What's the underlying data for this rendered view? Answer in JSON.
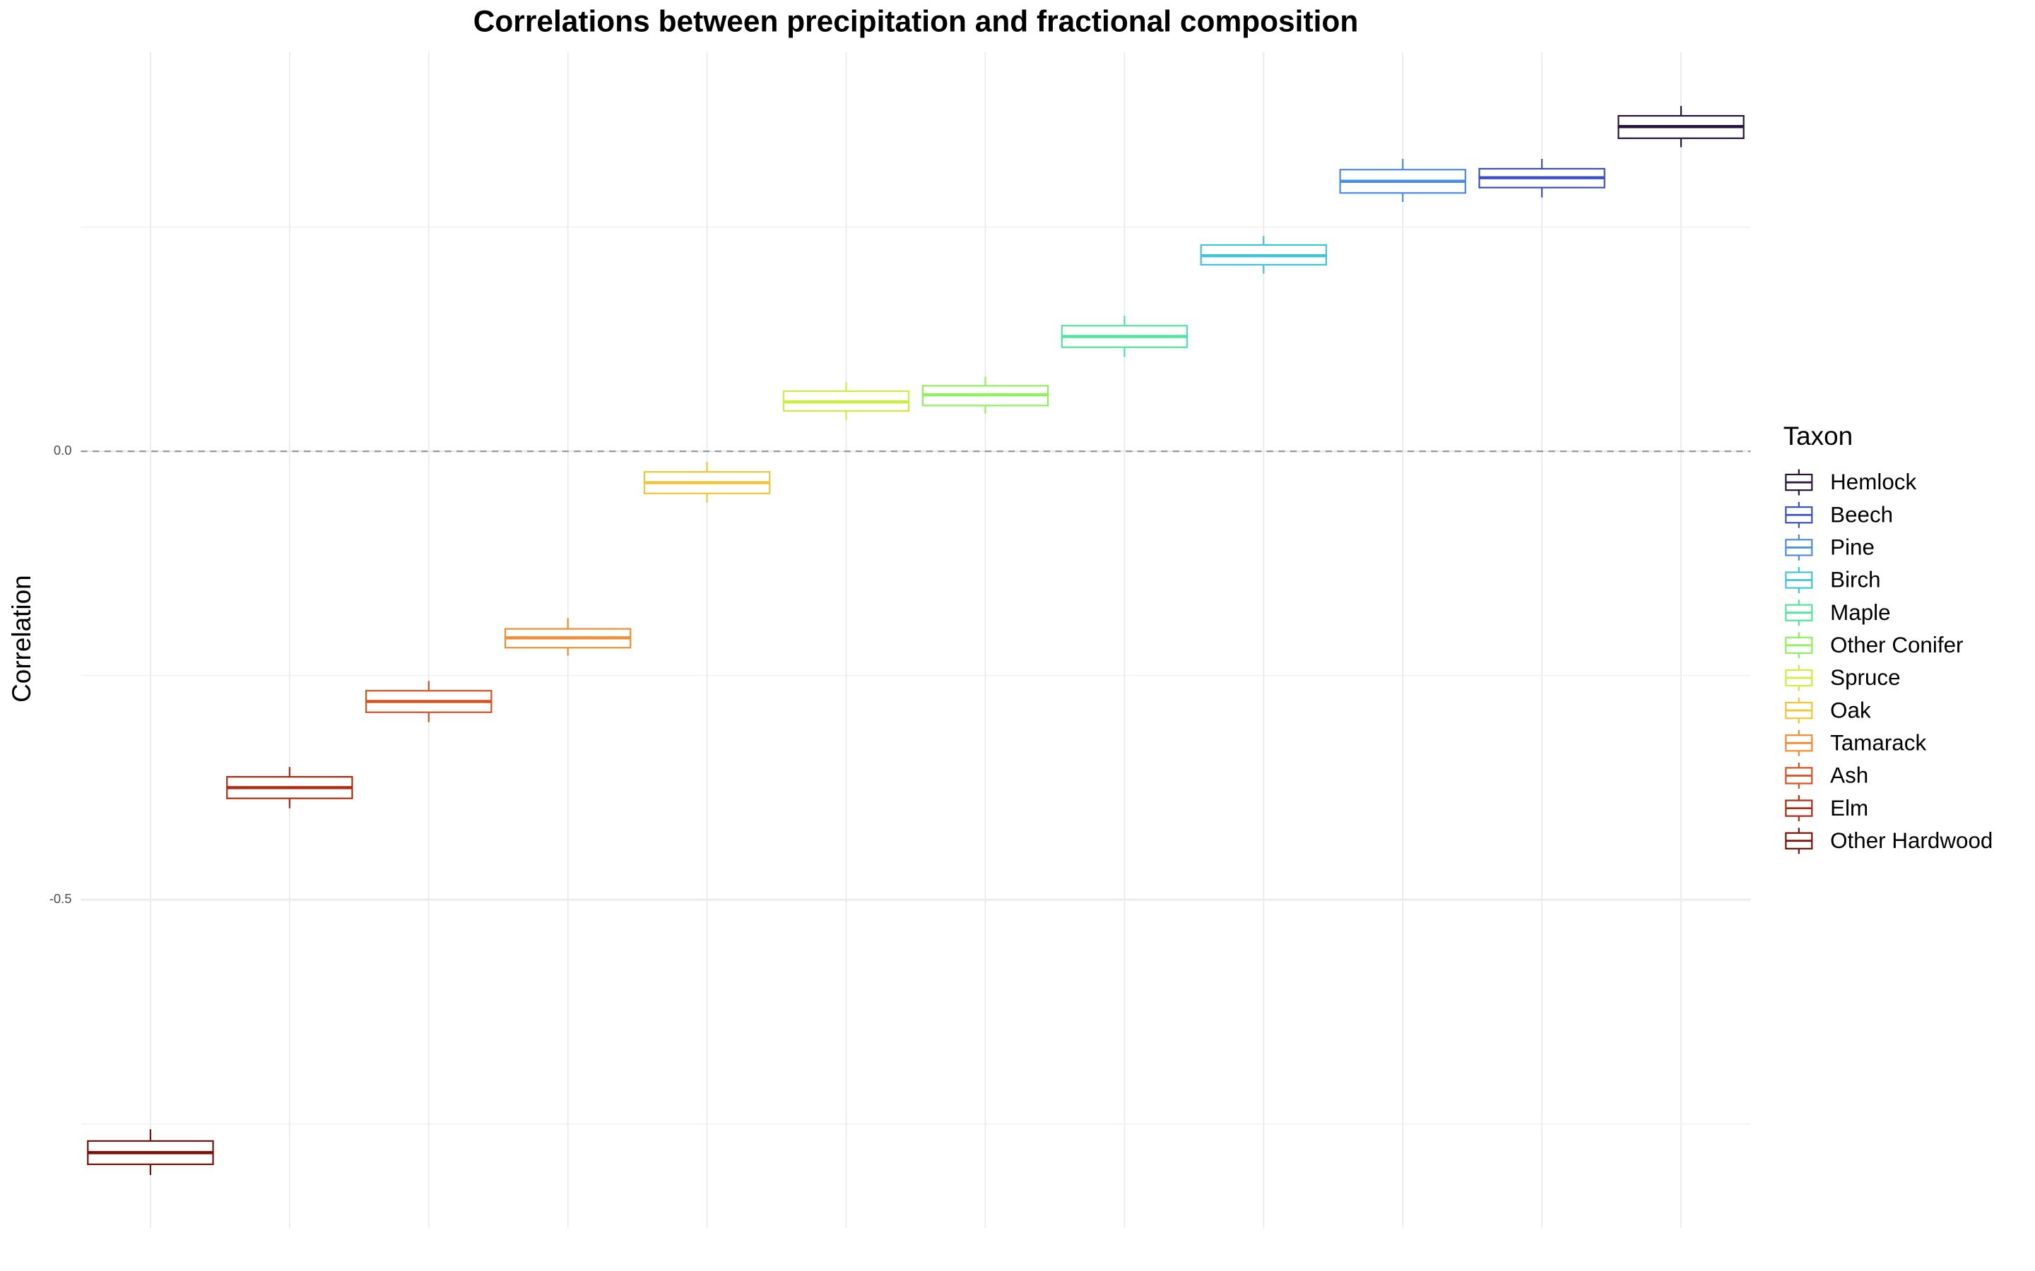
{
  "chart_data": {
    "type": "box",
    "title": "Correlations between precipitation and fractional composition",
    "ylabel": "Correlation",
    "legend_title": "Taxon",
    "legend_position": "right",
    "grid": true,
    "ylim": [
      -0.866,
      0.445
    ],
    "yticks": [
      {
        "value": 0,
        "label": "0.0"
      },
      {
        "value": -0.5,
        "label": "-0.5"
      }
    ],
    "yminorticks": [
      0.25,
      -0.25,
      -0.75
    ],
    "hline": 0,
    "series": [
      {
        "name": "Hemlock",
        "color": "#2b1140",
        "min": 0.339,
        "q1": 0.349,
        "median": 0.362,
        "q3": 0.374,
        "max": 0.385
      },
      {
        "name": "Beech",
        "color": "#3d50c3",
        "min": 0.283,
        "q1": 0.294,
        "median": 0.305,
        "q3": 0.315,
        "max": 0.326
      },
      {
        "name": "Pine",
        "color": "#4b8bea",
        "min": 0.278,
        "q1": 0.288,
        "median": 0.301,
        "q3": 0.314,
        "max": 0.326
      },
      {
        "name": "Birch",
        "color": "#3fc5d9",
        "min": 0.198,
        "q1": 0.208,
        "median": 0.218,
        "q3": 0.23,
        "max": 0.24
      },
      {
        "name": "Maple",
        "color": "#4fe5a0",
        "min": 0.105,
        "q1": 0.116,
        "median": 0.128,
        "q3": 0.14,
        "max": 0.151
      },
      {
        "name": "Other Conifer",
        "color": "#8df25a",
        "min": 0.042,
        "q1": 0.051,
        "median": 0.063,
        "q3": 0.073,
        "max": 0.083
      },
      {
        "name": "Spruce",
        "color": "#cdee3c",
        "min": 0.035,
        "q1": 0.045,
        "median": 0.055,
        "q3": 0.067,
        "max": 0.077
      },
      {
        "name": "Oak",
        "color": "#f0c534",
        "min": -0.057,
        "q1": -0.047,
        "median": -0.035,
        "q3": -0.023,
        "max": -0.012
      },
      {
        "name": "Tamarack",
        "color": "#f38b30",
        "min": -0.228,
        "q1": -0.219,
        "median": -0.208,
        "q3": -0.198,
        "max": -0.186
      },
      {
        "name": "Ash",
        "color": "#d9501f",
        "min": -0.302,
        "q1": -0.291,
        "median": -0.279,
        "q3": -0.267,
        "max": -0.256
      },
      {
        "name": "Elm",
        "color": "#b02a10",
        "min": -0.398,
        "q1": -0.387,
        "median": -0.375,
        "q3": -0.363,
        "max": -0.352
      },
      {
        "name": "Other Hardwood",
        "color": "#7a1008",
        "min": -0.807,
        "q1": -0.795,
        "median": -0.782,
        "q3": -0.769,
        "max": -0.756
      }
    ]
  }
}
